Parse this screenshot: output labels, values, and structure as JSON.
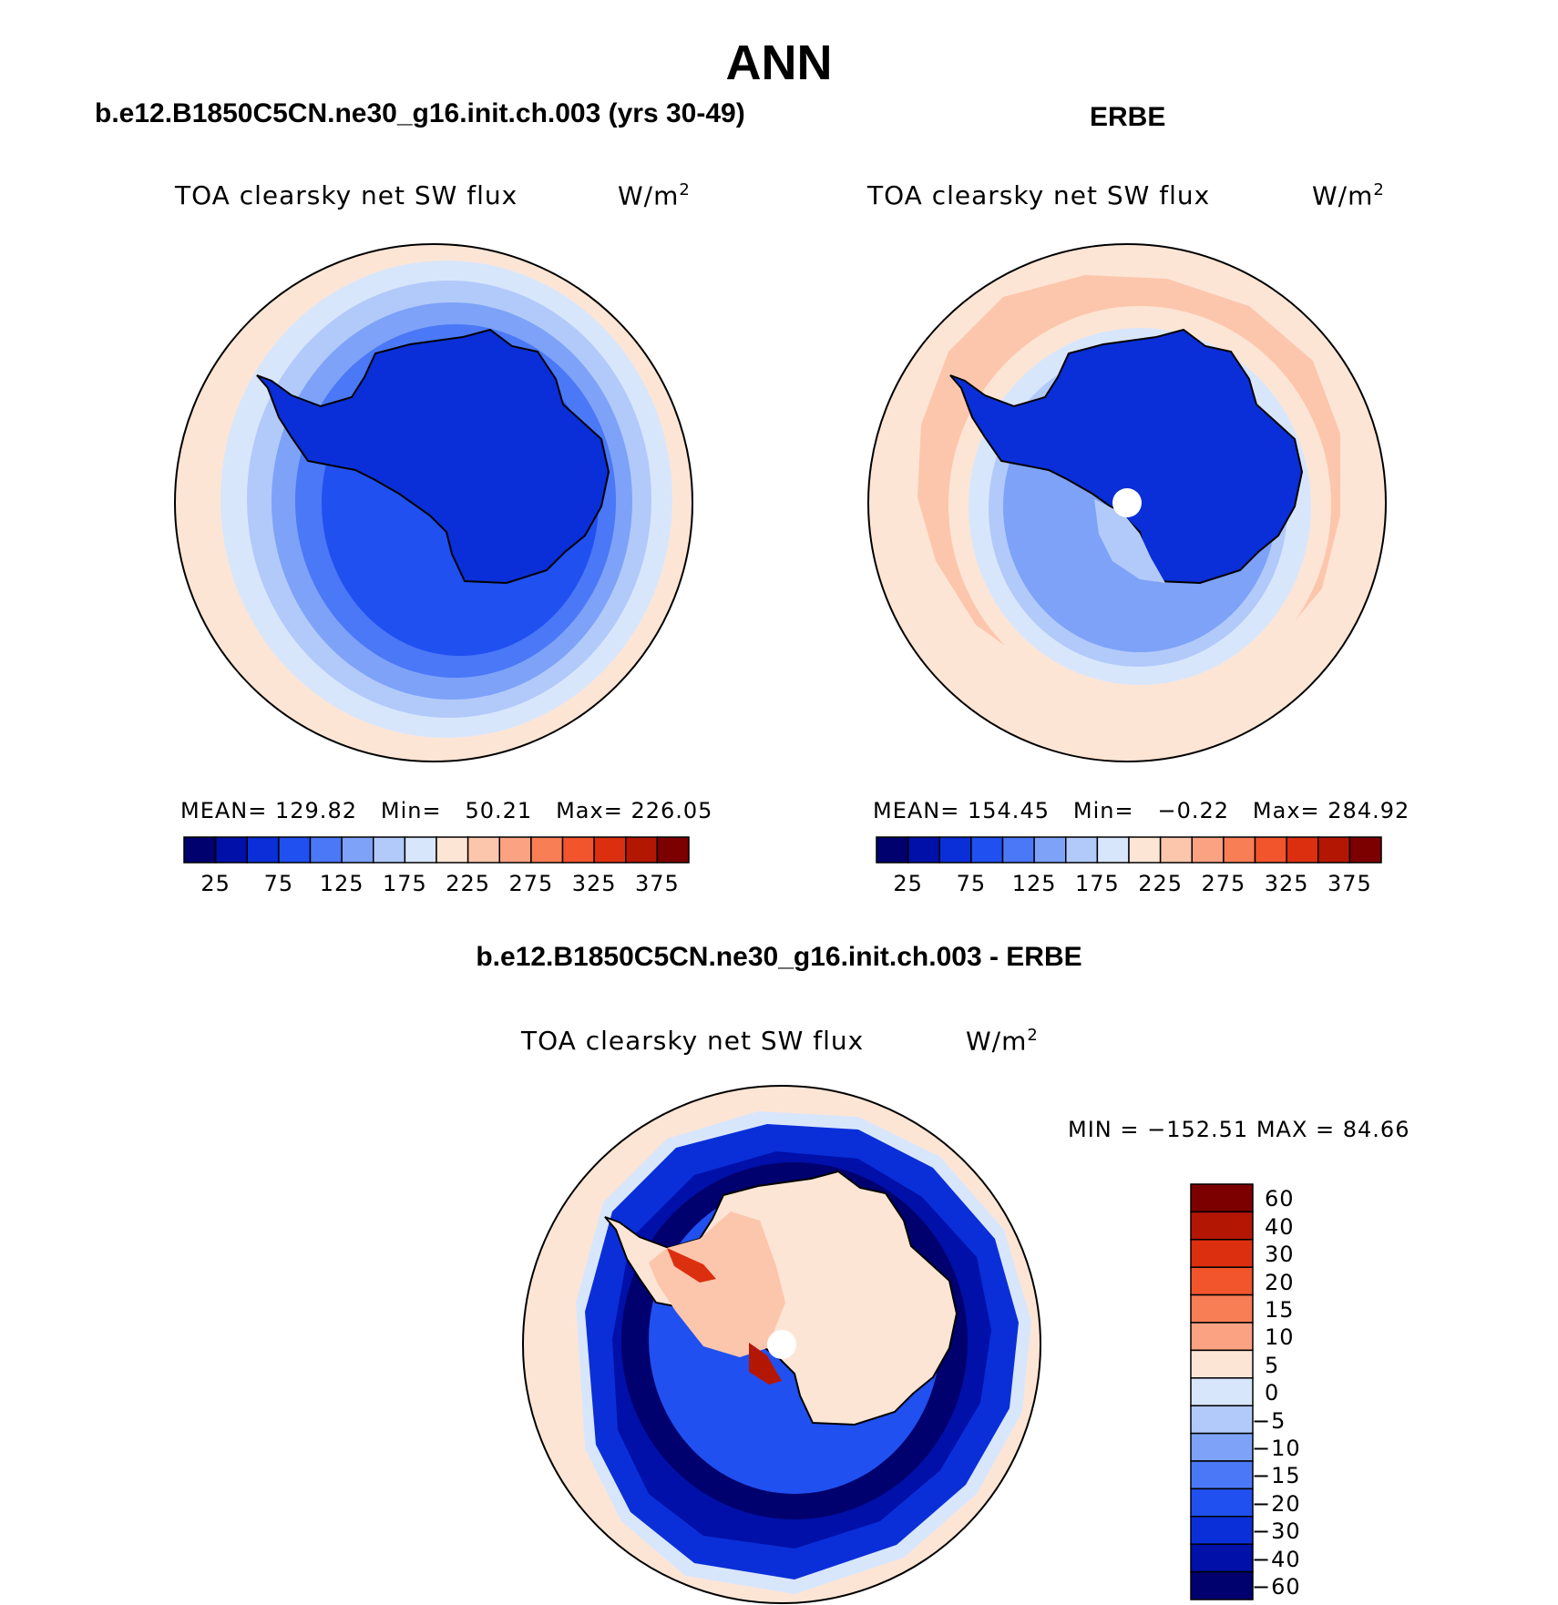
{
  "title": "ANN",
  "panels": [
    {
      "case_title": "b.e12.B1850C5CN.ne30_g16.init.ch.003 (yrs 30-49)",
      "variable": "TOA clearsky net SW flux",
      "units": "W/m",
      "units_exp": "2",
      "stats": {
        "mean_label": "MEAN=",
        "mean": "129.82",
        "min_label": "Min=",
        "min": "50.21",
        "max_label": "Max=",
        "max": "226.05"
      }
    },
    {
      "case_title": "ERBE",
      "variable": "TOA clearsky net SW flux",
      "units": "W/m",
      "units_exp": "2",
      "stats": {
        "mean_label": "MEAN=",
        "mean": "154.45",
        "min_label": "Min=",
        "min": "−0.22",
        "max_label": "Max=",
        "max": "284.92"
      }
    }
  ],
  "diff_panel": {
    "case_title": "b.e12.B1850C5CN.ne30_g16.init.ch.003 - ERBE",
    "variable": "TOA clearsky net SW flux",
    "units": "W/m",
    "units_exp": "2",
    "minmax": "MIN = −152.51 MAX =  84.66"
  },
  "abs_colorbar": {
    "colors": [
      "#00006e",
      "#0010a8",
      "#0a2fd8",
      "#2050f0",
      "#4a78f6",
      "#7da2f8",
      "#b2cafa",
      "#d8e6fc",
      "#fde5d5",
      "#fcc6ad",
      "#fba283",
      "#f87e56",
      "#f2542c",
      "#dc2f10",
      "#b41604",
      "#7c0000"
    ],
    "labels": [
      "25",
      "75",
      "125",
      "175",
      "225",
      "275",
      "325",
      "375"
    ]
  },
  "diff_colorbar": {
    "colors": [
      "#7c0000",
      "#b41604",
      "#dc2f10",
      "#f2542c",
      "#f87e56",
      "#fba283",
      "#fde5d5",
      "#d8e6fc",
      "#b2cafa",
      "#7da2f8",
      "#4a78f6",
      "#2050f0",
      "#0a2fd8",
      "#0010a8",
      "#00006e"
    ],
    "labels": [
      "60",
      "40",
      "30",
      "20",
      "15",
      "10",
      "5",
      "0",
      "−5",
      "−10",
      "−15",
      "−20",
      "−30",
      "−40",
      "−60"
    ]
  }
}
